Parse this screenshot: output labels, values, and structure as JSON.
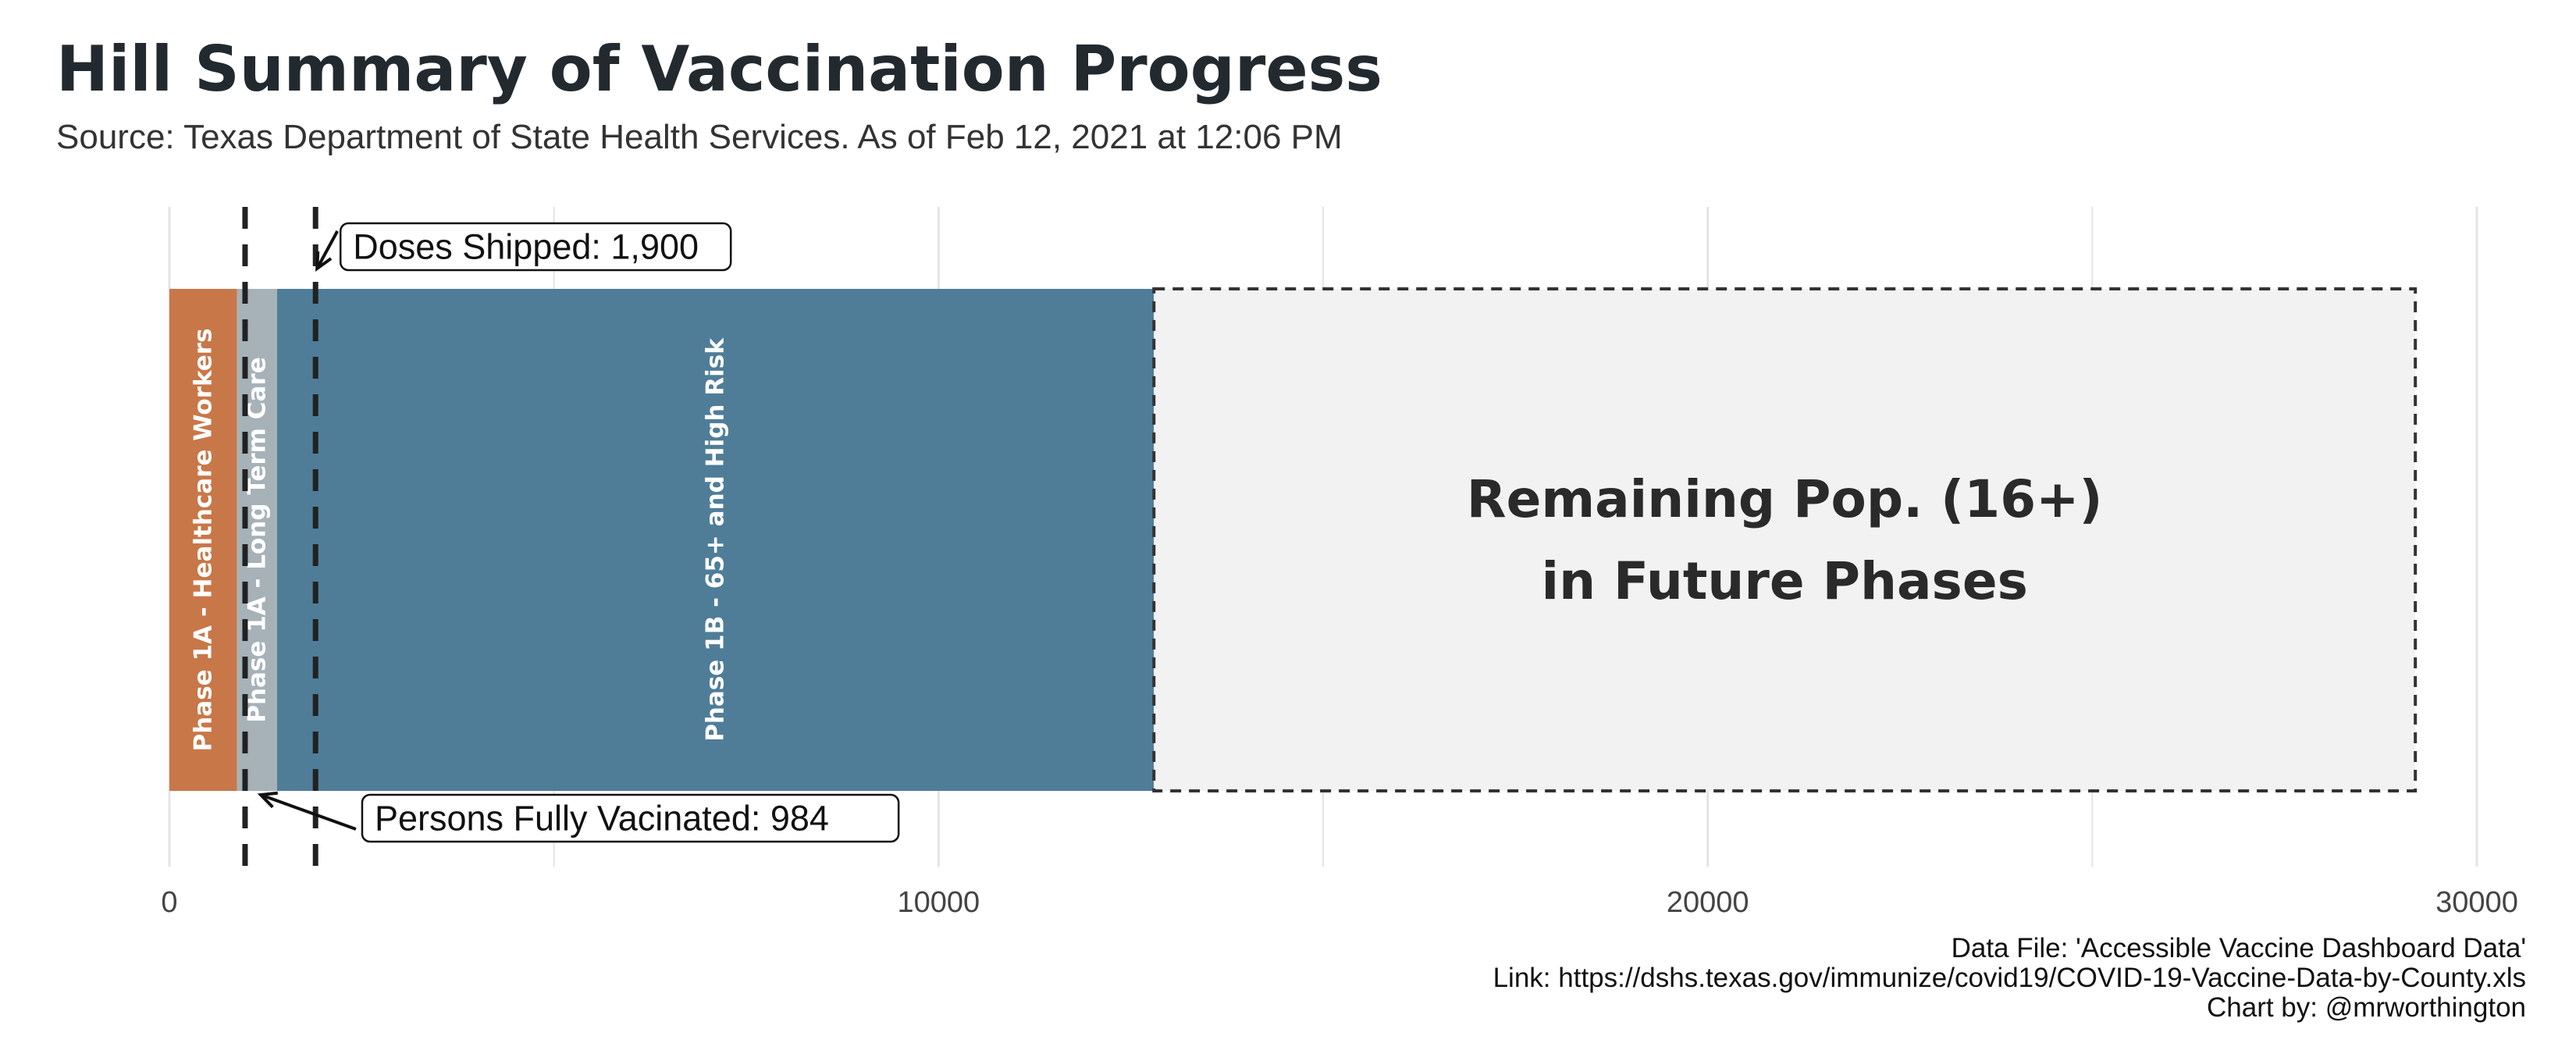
{
  "title": "Hill Summary of Vaccination Progress",
  "subtitle": "Source: Texas Department of State Health Services. As of Feb 12, 2021 at 12:06 PM",
  "caption": [
    "Data File: 'Accessible Vaccine Dashboard Data'",
    "Link: https://dshs.texas.gov/immunize/covid19/COVID-19-Vaccine-Data-by-County.xls",
    "Chart by: @mrworthington"
  ],
  "colors": {
    "phase_1a_healthcare": "#c87748",
    "phase_1a_ltc": "#a6b2b8",
    "phase_1b": "#4f7d98",
    "remaining_fill": "#f2f2f2",
    "remaining_border": "#333333",
    "grid": "#e4e4e4",
    "reference_line": "#222222"
  },
  "chart_data": {
    "type": "bar",
    "orientation": "horizontal-stacked",
    "xlim": [
      0,
      30000
    ],
    "x_ticks": [
      0,
      10000,
      20000,
      30000
    ],
    "x_tick_labels": [
      "0",
      "10000",
      "20000",
      "30000"
    ],
    "grid": true,
    "segments": [
      {
        "label": "Phase 1A - Healthcare Workers",
        "start": 0,
        "end": 880,
        "color_key": "phase_1a_healthcare"
      },
      {
        "label": "Phase 1A - Long Term Care",
        "start": 880,
        "end": 1400,
        "color_key": "phase_1a_ltc"
      },
      {
        "label": "Phase 1B - 65+ and High Risk",
        "start": 1400,
        "end": 12800,
        "color_key": "phase_1b"
      }
    ],
    "remaining": {
      "label_lines": [
        "Remaining Pop. (16+)",
        "in Future Phases"
      ],
      "start": 12800,
      "end": 29200
    },
    "reference_lines": [
      {
        "label": "Doses Shipped: 1,900",
        "value": 1900,
        "position": "top"
      },
      {
        "label": "Persons Fully Vacinated: 984",
        "value": 984,
        "position": "bottom"
      }
    ]
  }
}
